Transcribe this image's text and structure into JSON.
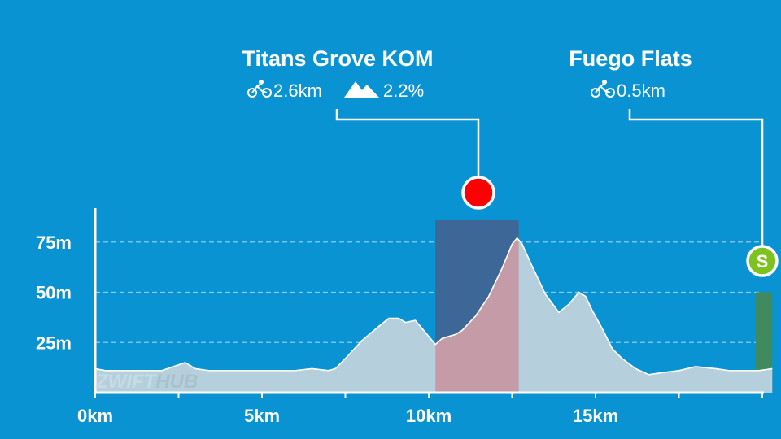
{
  "segments": [
    {
      "name": "Titans Grove KOM",
      "distance": "2.6km",
      "grade": "2.2%",
      "type": "climb",
      "marker_color": "#ff0000",
      "start_km": 10.2,
      "end_km": 12.7
    },
    {
      "name": "Fuego Flats",
      "distance": "0.5km",
      "type": "sprint",
      "marker_label": "S",
      "marker_color": "#7dc21e",
      "start_km": 19.8,
      "end_km": 20.3
    }
  ],
  "watermark": {
    "left": "ZWIFT",
    "right": "HUB"
  },
  "colors": {
    "background": "#0a93d3",
    "profile_fill": "#b5d0dc",
    "climb_fill": "#c59ba8",
    "climb_band": "#3d6796",
    "sprint_band": "#3f8a5e",
    "grid": "#8ecbe9"
  },
  "chart_data": {
    "type": "area",
    "title": "",
    "xlabel": "",
    "ylabel": "",
    "xlim": [
      0,
      20.3
    ],
    "ylim": [
      0,
      95
    ],
    "x_ticks": [
      0,
      5,
      10,
      15
    ],
    "x_tick_labels": [
      "0km",
      "5km",
      "10km",
      "15km"
    ],
    "y_ticks": [
      25,
      50,
      75
    ],
    "y_tick_labels": [
      "25m",
      "50m",
      "75m"
    ],
    "grid": "horizontal dashed at y ticks",
    "series": [
      {
        "x": [
          0,
          0.3,
          1,
          2,
          2.7,
          3,
          3.4,
          4,
          5,
          6,
          6.5,
          7,
          7.2,
          7.5,
          8,
          8.5,
          8.8,
          9.1,
          9.3,
          9.6,
          9.9,
          10.1,
          10.2,
          10.4,
          10.6,
          10.8,
          11,
          11.4,
          11.8,
          12.2,
          12.5,
          12.65,
          12.8,
          13.1,
          13.5,
          13.9,
          14.2,
          14.5,
          14.7,
          14.9,
          15.2,
          15.5,
          15.8,
          16.2,
          16.6,
          17,
          17.5,
          18,
          18.6,
          19,
          19.5,
          19.9,
          20.3
        ],
        "y": [
          12,
          11,
          11,
          11,
          15,
          12,
          11,
          11,
          11,
          11,
          12,
          11,
          12,
          17,
          26,
          33,
          37,
          37,
          35,
          36,
          30,
          26,
          24,
          27,
          28,
          29,
          31,
          38,
          48,
          62,
          74,
          77,
          74,
          63,
          49,
          40,
          44,
          50,
          48,
          41,
          32,
          22,
          17,
          12,
          9,
          10,
          11,
          13,
          12,
          11,
          11,
          11,
          12
        ]
      }
    ],
    "highlight_ranges": [
      {
        "label": "Titans Grove KOM",
        "x": [
          10.2,
          12.7
        ]
      },
      {
        "label": "Fuego Flats",
        "x": [
          19.8,
          20.3
        ]
      }
    ]
  }
}
